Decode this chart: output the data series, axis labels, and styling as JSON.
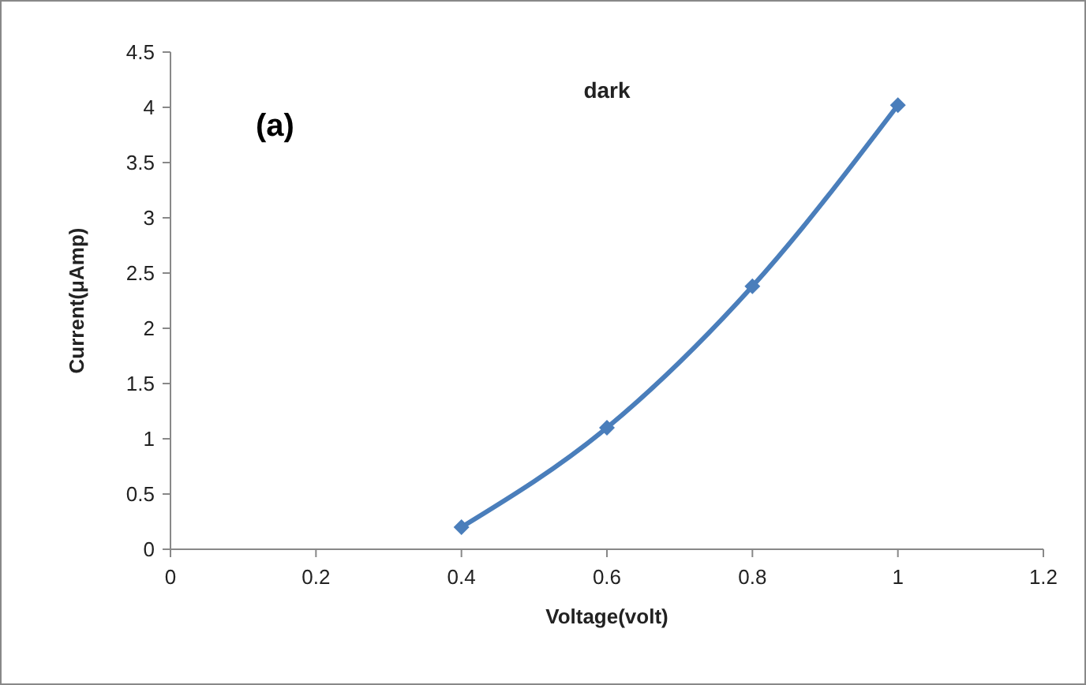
{
  "chart_data": {
    "type": "line",
    "title": "dark",
    "xlabel": "Voltage(volt)",
    "ylabel": "Current(μAmp)",
    "annotations": [
      "(a)"
    ],
    "x": [
      0.4,
      0.6,
      0.8,
      1.0
    ],
    "series": [
      {
        "color": "#4a7ebb",
        "values": [
          0.2,
          1.1,
          2.38,
          4.02
        ]
      }
    ],
    "xlim": [
      0,
      1.2
    ],
    "xticks": [
      0,
      0.2,
      0.4,
      0.6,
      0.8,
      1,
      1.2
    ],
    "ylim": [
      0,
      4.5
    ],
    "yticks": [
      0,
      0.5,
      1,
      1.5,
      2,
      2.5,
      3,
      3.5,
      4,
      4.5
    ],
    "grid": false,
    "marker": "diamond",
    "line_style": "solid"
  }
}
